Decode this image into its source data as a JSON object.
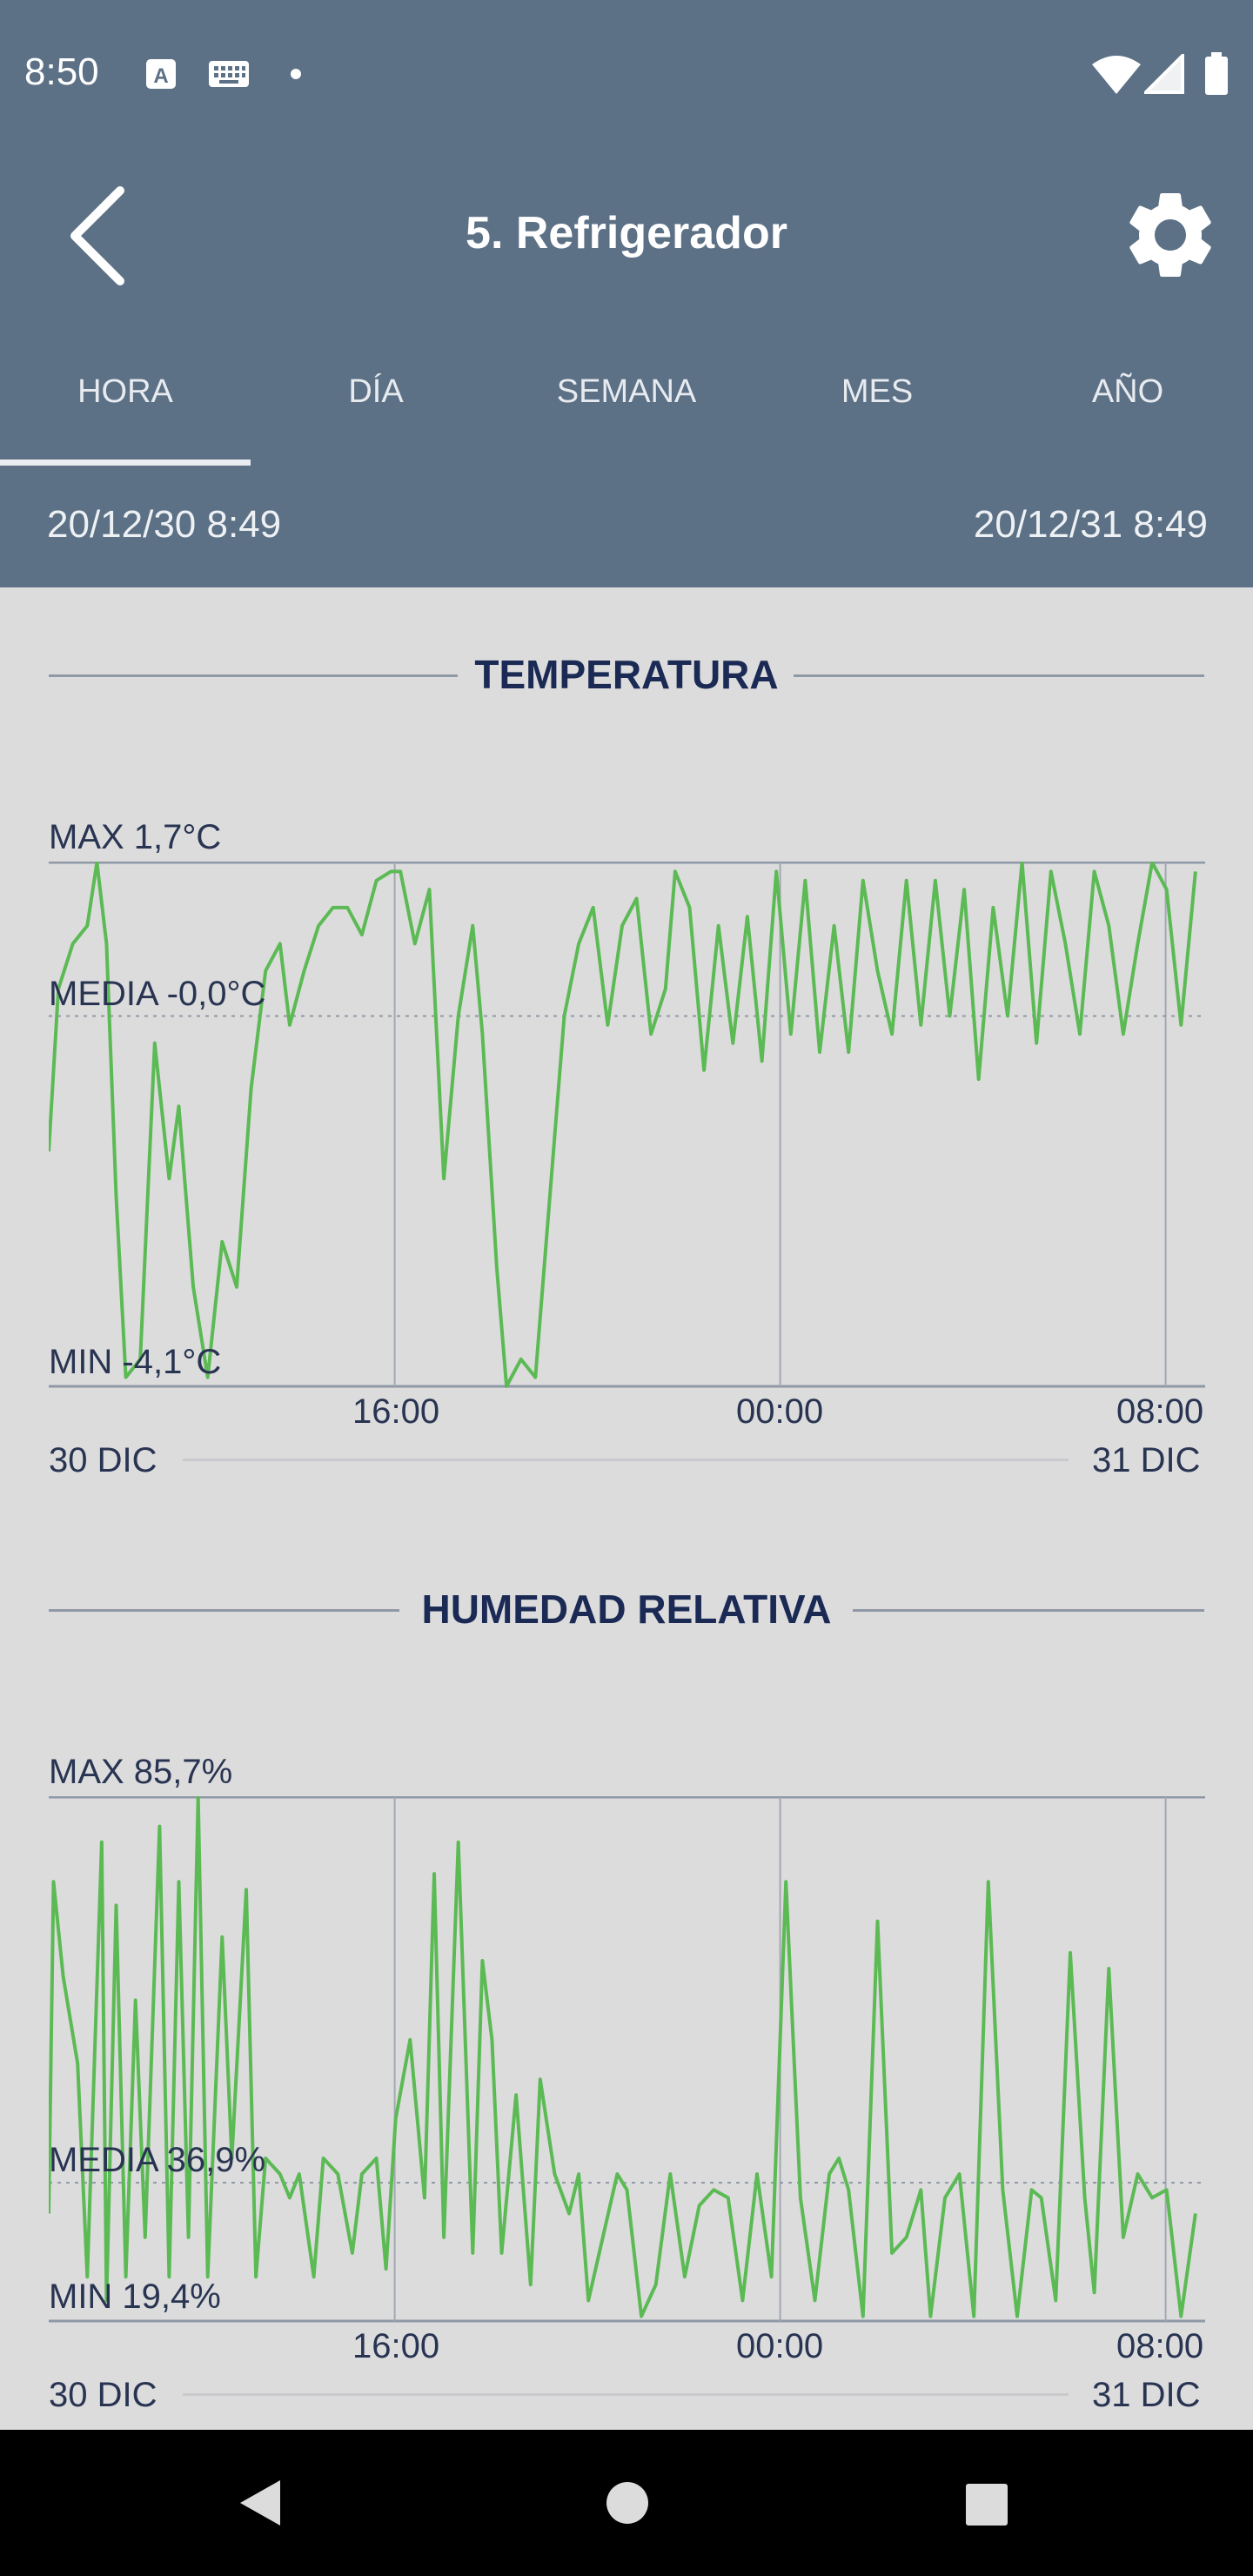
{
  "status_bar": {
    "time": "8:50",
    "icons": [
      "a-icon",
      "keyboard-icon",
      "dot-icon",
      "wifi-icon",
      "signal-icon",
      "battery-icon"
    ]
  },
  "app_bar": {
    "title": "5. Refrigerador",
    "back_icon": "chevron-left-icon",
    "settings_icon": "gear-icon"
  },
  "tabs": [
    {
      "label": "HORA",
      "selected": true
    },
    {
      "label": "DÍA",
      "selected": false
    },
    {
      "label": "SEMANA",
      "selected": false
    },
    {
      "label": "MES",
      "selected": false
    },
    {
      "label": "AÑO",
      "selected": false
    }
  ],
  "range": {
    "start": "20/12/30 8:49",
    "end": "20/12/31 8:49"
  },
  "colors": {
    "header": "#5c7086",
    "background": "#dcdcdc",
    "line": "#5cba55",
    "title": "#1b2a55"
  },
  "temperature": {
    "title": "TEMPERATURA",
    "max_label": "MAX 1,7°C",
    "mean_label": "MEDIA -0,0°C",
    "min_label": "MIN -4,1°C",
    "ticks": [
      "16:00",
      "00:00",
      "08:00"
    ],
    "day_start": "30 DIC",
    "day_end": "31 DIC"
  },
  "humidity": {
    "title": "HUMEDAD RELATIVA",
    "max_label": "MAX 85,7%",
    "mean_label": "MEDIA 36,9%",
    "min_label": "MIN 19,4%",
    "ticks": [
      "16:00",
      "00:00",
      "08:00"
    ],
    "day_start": "30 DIC",
    "day_end": "31 DIC"
  },
  "chart_data": [
    {
      "type": "line",
      "title": "TEMPERATURA",
      "ylim": [
        -4.1,
        1.7
      ],
      "mean": 0.0,
      "x_ticks": [
        "16:00",
        "00:00",
        "08:00"
      ],
      "x_tick_hours": [
        7.18,
        15.18,
        23.18
      ],
      "x_range_hours": [
        0,
        24
      ],
      "series": [
        {
          "x": [
            0,
            0.2,
            0.5,
            0.8,
            1.0,
            1.2,
            1.4,
            1.6,
            1.9,
            2.2,
            2.5,
            2.7,
            3.0,
            3.3,
            3.6,
            3.9,
            4.2,
            4.5,
            4.8,
            5.0,
            5.3,
            5.6,
            5.9,
            6.2,
            6.5,
            6.8,
            7.1,
            7.3,
            7.6,
            7.9,
            8.2,
            8.5,
            8.8,
            9.0,
            9.3,
            9.5,
            9.8,
            10.1,
            10.4,
            10.7,
            11.0,
            11.3,
            11.6,
            11.9,
            12.2,
            12.5,
            12.8,
            13.0,
            13.3,
            13.6,
            13.9,
            14.2,
            14.5,
            14.8,
            15.1,
            15.4,
            15.7,
            16.0,
            16.3,
            16.6,
            16.9,
            17.2,
            17.5,
            17.8,
            18.1,
            18.4,
            18.7,
            19.0,
            19.3,
            19.6,
            19.9,
            20.2,
            20.5,
            20.8,
            21.1,
            21.4,
            21.7,
            22.0,
            22.3,
            22.6,
            22.9,
            23.2,
            23.5,
            23.8
          ],
          "y": [
            -1.5,
            0.3,
            0.8,
            1.0,
            1.7,
            0.8,
            -2.0,
            -4.0,
            -3.8,
            -0.3,
            -1.8,
            -1.0,
            -3.0,
            -4.0,
            -2.5,
            -3.0,
            -0.8,
            0.5,
            0.8,
            -0.1,
            0.5,
            1.0,
            1.2,
            1.2,
            0.9,
            1.5,
            1.6,
            1.6,
            0.8,
            1.4,
            -1.8,
            0.0,
            1.0,
            -0.2,
            -2.8,
            -4.1,
            -3.8,
            -4.0,
            -2.0,
            0.0,
            0.8,
            1.2,
            -0.1,
            1.0,
            1.3,
            -0.2,
            0.3,
            1.6,
            1.2,
            -0.6,
            1.0,
            -0.3,
            1.1,
            -0.5,
            1.6,
            -0.2,
            1.5,
            -0.4,
            1.0,
            -0.4,
            1.5,
            0.5,
            -0.2,
            1.5,
            -0.1,
            1.5,
            0.0,
            1.4,
            -0.7,
            1.2,
            0.0,
            1.7,
            -0.3,
            1.6,
            0.8,
            -0.2,
            1.6,
            1.0,
            -0.2,
            0.8,
            1.7,
            1.4,
            -0.1,
            1.6
          ]
        }
      ]
    },
    {
      "type": "line",
      "title": "HUMEDAD RELATIVA",
      "ylim": [
        19.4,
        85.7
      ],
      "mean": 36.9,
      "x_ticks": [
        "16:00",
        "00:00",
        "08:00"
      ],
      "x_tick_hours": [
        7.18,
        15.18,
        23.18
      ],
      "x_range_hours": [
        0,
        24
      ],
      "series": [
        {
          "x": [
            0,
            0.1,
            0.3,
            0.6,
            0.8,
            1.1,
            1.2,
            1.4,
            1.6,
            1.8,
            2.0,
            2.3,
            2.5,
            2.7,
            2.9,
            3.1,
            3.3,
            3.6,
            3.8,
            4.1,
            4.3,
            4.5,
            4.8,
            5.0,
            5.2,
            5.5,
            5.7,
            6.0,
            6.3,
            6.5,
            6.8,
            7.0,
            7.2,
            7.5,
            7.8,
            8.0,
            8.2,
            8.5,
            8.8,
            9.0,
            9.2,
            9.4,
            9.7,
            10.0,
            10.2,
            10.5,
            10.8,
            11.0,
            11.2,
            11.5,
            11.8,
            12.0,
            12.3,
            12.6,
            12.9,
            13.2,
            13.5,
            13.8,
            14.1,
            14.4,
            14.7,
            15.0,
            15.3,
            15.6,
            15.9,
            16.2,
            16.4,
            16.6,
            16.9,
            17.2,
            17.5,
            17.8,
            18.1,
            18.3,
            18.6,
            18.9,
            19.2,
            19.5,
            19.8,
            20.1,
            20.4,
            20.6,
            20.9,
            21.2,
            21.5,
            21.7,
            22.0,
            22.3,
            22.6,
            22.9,
            23.2,
            23.5,
            23.8
          ],
          "y": [
            33,
            75,
            63,
            52,
            25,
            80,
            22,
            72,
            25,
            60,
            30,
            82,
            25,
            75,
            30,
            85.7,
            25,
            68,
            40,
            74,
            25,
            40,
            38,
            35,
            38,
            25,
            40,
            38,
            28,
            38,
            40,
            26,
            45,
            55,
            35,
            76,
            30,
            80,
            28,
            65,
            55,
            28,
            48,
            24,
            50,
            38,
            33,
            38,
            22,
            30,
            38,
            36,
            20,
            24,
            38,
            25,
            34,
            36,
            35,
            22,
            38,
            25,
            75,
            35,
            22,
            38,
            40,
            36,
            20,
            70,
            28,
            30,
            36,
            20,
            35,
            38,
            20,
            75,
            36,
            20,
            36,
            35,
            22,
            66,
            35,
            23,
            64,
            30,
            38,
            35,
            36,
            20,
            33
          ]
        }
      ]
    }
  ]
}
